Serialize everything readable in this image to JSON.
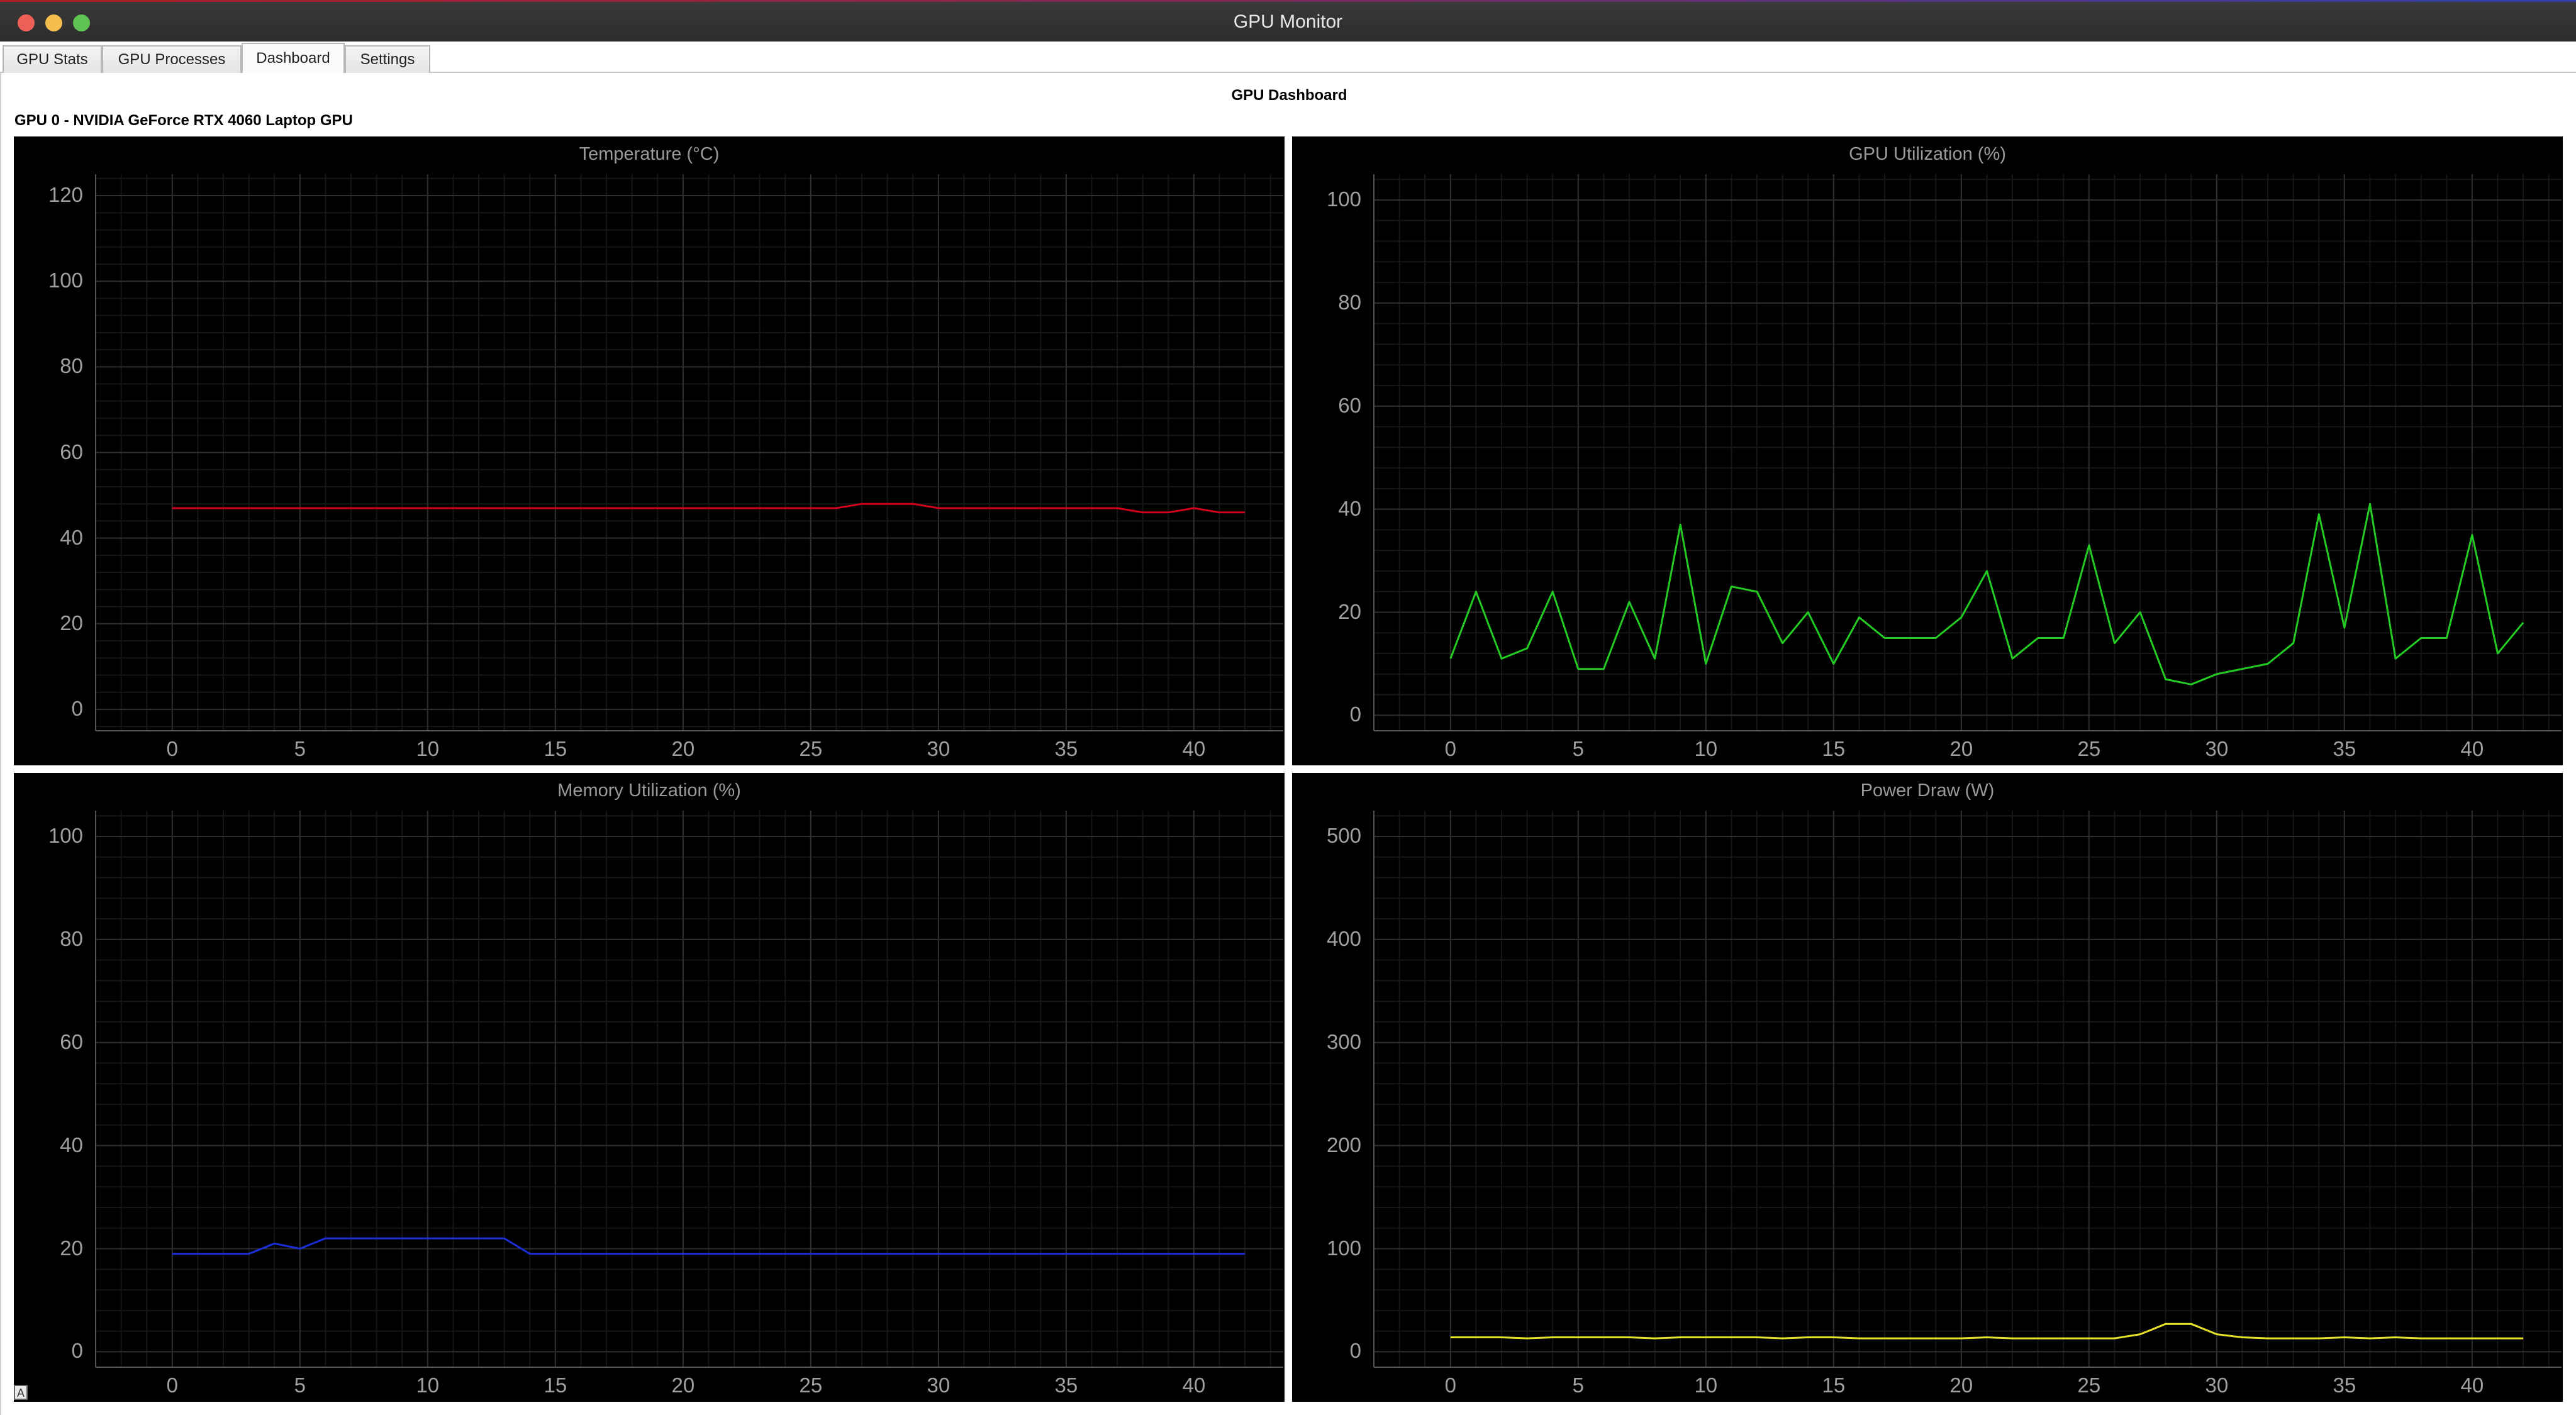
{
  "window": {
    "title": "GPU Monitor"
  },
  "tabs": [
    {
      "label": "GPU Stats",
      "active": false
    },
    {
      "label": "GPU Processes",
      "active": false
    },
    {
      "label": "Dashboard",
      "active": true
    },
    {
      "label": "Settings",
      "active": false
    }
  ],
  "dashboard": {
    "title": "GPU Dashboard",
    "gpu_label": "GPU 0 - NVIDIA GeForce RTX 4060 Laptop GPU",
    "auto_button_label": "A"
  },
  "chart_data": [
    {
      "type": "line",
      "title": "Temperature (°C)",
      "color": "#d0021b",
      "xlim": [
        -3,
        43.5
      ],
      "ylim": [
        -5,
        125
      ],
      "xticks": [
        0,
        5,
        10,
        15,
        20,
        25,
        30,
        35,
        40
      ],
      "yticks": [
        0,
        20,
        40,
        60,
        80,
        100,
        120
      ],
      "grid": true,
      "x": [
        0,
        1,
        2,
        3,
        4,
        5,
        6,
        7,
        8,
        9,
        10,
        11,
        12,
        13,
        14,
        15,
        16,
        17,
        18,
        19,
        20,
        21,
        22,
        23,
        24,
        25,
        26,
        27,
        28,
        29,
        30,
        31,
        32,
        33,
        34,
        35,
        36,
        37,
        38,
        39,
        40,
        41,
        42
      ],
      "y": [
        47,
        47,
        47,
        47,
        47,
        47,
        47,
        47,
        47,
        47,
        47,
        47,
        47,
        47,
        47,
        47,
        47,
        47,
        47,
        47,
        47,
        47,
        47,
        47,
        47,
        47,
        47,
        48,
        48,
        48,
        47,
        47,
        47,
        47,
        47,
        47,
        47,
        47,
        46,
        46,
        47,
        46,
        46
      ]
    },
    {
      "type": "line",
      "title": "GPU Utilization (%)",
      "color": "#22cc22",
      "xlim": [
        -3,
        43.5
      ],
      "ylim": [
        -3,
        105
      ],
      "xticks": [
        0,
        5,
        10,
        15,
        20,
        25,
        30,
        35,
        40
      ],
      "yticks": [
        0,
        20,
        40,
        60,
        80,
        100
      ],
      "grid": true,
      "x": [
        0,
        1,
        2,
        3,
        4,
        5,
        6,
        7,
        8,
        9,
        10,
        11,
        12,
        13,
        14,
        15,
        16,
        17,
        18,
        19,
        20,
        21,
        22,
        23,
        24,
        25,
        26,
        27,
        28,
        29,
        30,
        31,
        32,
        33,
        34,
        35,
        36,
        37,
        38,
        39,
        40,
        41,
        42
      ],
      "y": [
        11,
        24,
        11,
        13,
        24,
        9,
        9,
        22,
        11,
        37,
        10,
        25,
        24,
        14,
        20,
        10,
        19,
        15,
        15,
        15,
        19,
        28,
        11,
        15,
        15,
        33,
        14,
        20,
        7,
        6,
        8,
        9,
        10,
        14,
        39,
        17,
        41,
        11,
        15,
        15,
        35,
        12,
        18
      ]
    },
    {
      "type": "line",
      "title": "Memory Utilization (%)",
      "color": "#1a2ed8",
      "xlim": [
        -3,
        43.5
      ],
      "ylim": [
        -3,
        105
      ],
      "xticks": [
        0,
        5,
        10,
        15,
        20,
        25,
        30,
        35,
        40
      ],
      "yticks": [
        0,
        20,
        40,
        60,
        80,
        100
      ],
      "grid": true,
      "x": [
        0,
        1,
        2,
        3,
        4,
        5,
        6,
        7,
        8,
        9,
        10,
        11,
        12,
        13,
        14,
        15,
        16,
        17,
        18,
        19,
        20,
        21,
        22,
        23,
        24,
        25,
        26,
        27,
        28,
        29,
        30,
        31,
        32,
        33,
        34,
        35,
        36,
        37,
        38,
        39,
        40,
        41,
        42
      ],
      "y": [
        19,
        19,
        19,
        19,
        21,
        20,
        22,
        22,
        22,
        22,
        22,
        22,
        22,
        22,
        19,
        19,
        19,
        19,
        19,
        19,
        19,
        19,
        19,
        19,
        19,
        19,
        19,
        19,
        19,
        19,
        19,
        19,
        19,
        19,
        19,
        19,
        19,
        19,
        19,
        19,
        19,
        19,
        19
      ]
    },
    {
      "type": "line",
      "title": "Power Draw (W)",
      "color": "#e6e22a",
      "xlim": [
        -3,
        43.5
      ],
      "ylim": [
        -15,
        525
      ],
      "xticks": [
        0,
        5,
        10,
        15,
        20,
        25,
        30,
        35,
        40
      ],
      "yticks": [
        0,
        100,
        200,
        300,
        400,
        500
      ],
      "grid": true,
      "x": [
        0,
        1,
        2,
        3,
        4,
        5,
        6,
        7,
        8,
        9,
        10,
        11,
        12,
        13,
        14,
        15,
        16,
        17,
        18,
        19,
        20,
        21,
        22,
        23,
        24,
        25,
        26,
        27,
        28,
        29,
        30,
        31,
        32,
        33,
        34,
        35,
        36,
        37,
        38,
        39,
        40,
        41,
        42
      ],
      "y": [
        14,
        14,
        14,
        13,
        14,
        14,
        14,
        14,
        13,
        14,
        14,
        14,
        14,
        13,
        14,
        14,
        13,
        13,
        13,
        13,
        13,
        14,
        13,
        13,
        13,
        13,
        13,
        17,
        27,
        27,
        17,
        14,
        13,
        13,
        13,
        14,
        13,
        14,
        13,
        13,
        13,
        13,
        13
      ]
    }
  ]
}
